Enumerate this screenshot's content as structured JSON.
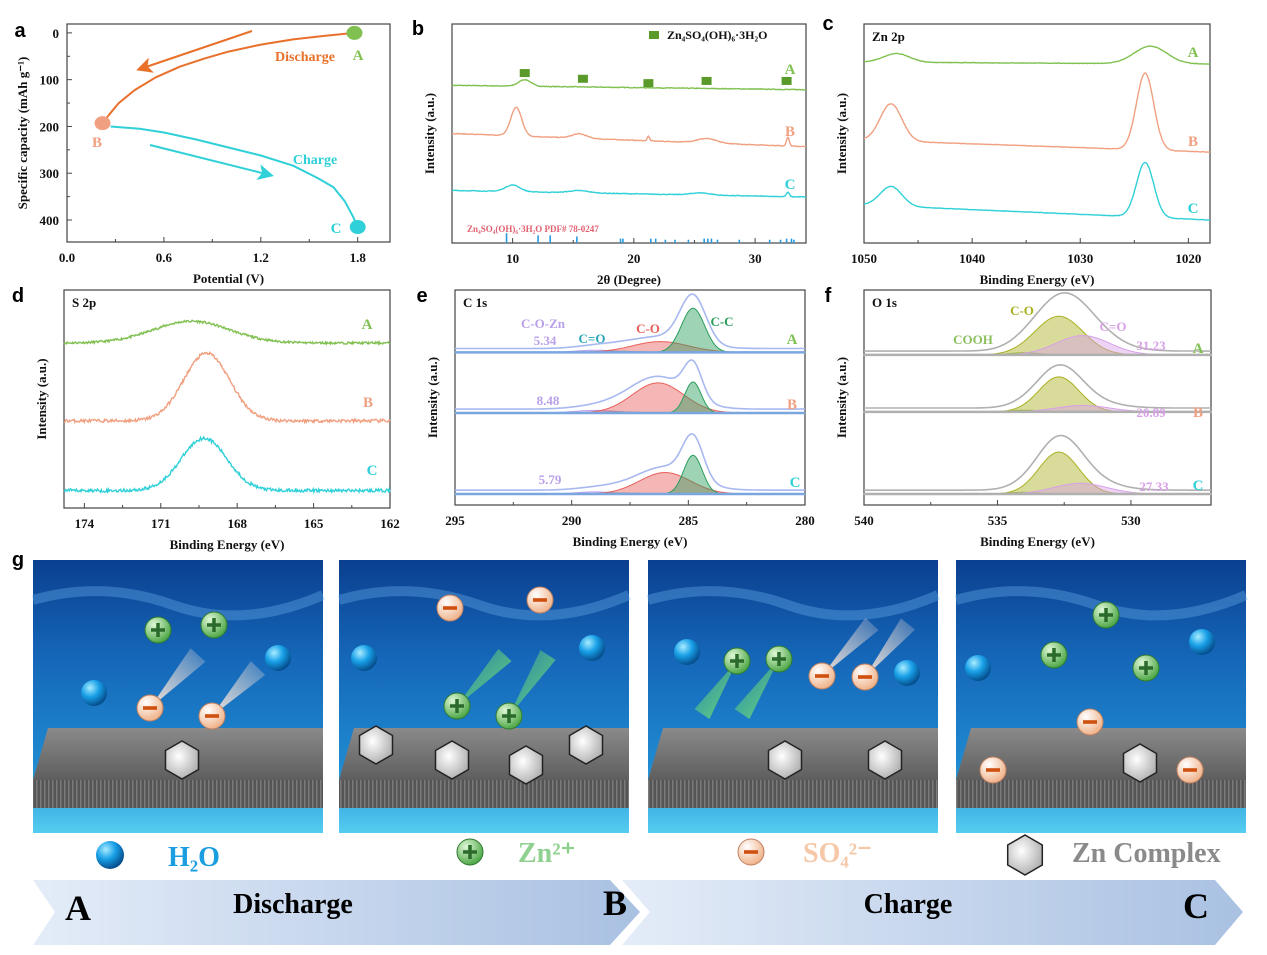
{
  "panel_letters": {
    "a": "a",
    "b": "b",
    "c": "c",
    "d": "d",
    "e": "e",
    "f": "f",
    "g": "g"
  },
  "chart_data": [
    {
      "panel": "a",
      "type": "line",
      "xlabel": "Potential (V)",
      "ylabel": "Specific capacity (mAh g⁻¹)",
      "xlim": [
        0,
        2.0
      ],
      "ylim": [
        -19,
        447
      ],
      "y_inverted": true,
      "xticks": [
        0,
        0.6,
        1.2,
        1.8
      ],
      "xtick_labels": [
        "0.0",
        "0.6",
        "1.2",
        "1.8"
      ],
      "yticks": [
        0,
        100,
        200,
        300,
        400
      ],
      "ytick_labels": [
        "0",
        "100",
        "200",
        "300",
        "400"
      ],
      "series": [
        {
          "name": "Discharge",
          "color": "#e8702a",
          "x": [
            1.78,
            1.6,
            1.4,
            1.2,
            1.0,
            0.85,
            0.7,
            0.55,
            0.42,
            0.32,
            0.26,
            0.22
          ],
          "y": [
            0,
            6,
            14,
            25,
            40,
            55,
            72,
            95,
            122,
            150,
            175,
            193
          ]
        },
        {
          "name": "Charge",
          "color": "#30d0d8",
          "x": [
            0.27,
            0.45,
            0.6,
            0.8,
            1.0,
            1.2,
            1.4,
            1.55,
            1.65,
            1.72,
            1.77,
            1.8
          ],
          "y": [
            200,
            205,
            213,
            228,
            245,
            262,
            284,
            310,
            330,
            360,
            392,
            415
          ]
        }
      ],
      "points": [
        {
          "label": "A",
          "x": 1.78,
          "y": 0,
          "color": "#80c050"
        },
        {
          "label": "B",
          "x": 0.22,
          "y": 193,
          "color": "#f0a080"
        },
        {
          "label": "C",
          "x": 1.8,
          "y": 415,
          "color": "#30d0d8"
        }
      ],
      "annotations": {
        "discharge": "Discharge",
        "charge": "Charge"
      }
    },
    {
      "panel": "b",
      "type": "line",
      "xlabel": "2θ (Degree)",
      "ylabel": "Intensity (a.u.)",
      "xlim": [
        5,
        34.2
      ],
      "ylim": [
        0,
        100
      ],
      "xticks": [
        10,
        20,
        30
      ],
      "xtick_labels": [
        "10",
        "20",
        "30"
      ],
      "legend": {
        "label": "Zn₄SO₄(OH)₆·3H₂O",
        "marker_color": "#5a9a2a",
        "placement": "top-right"
      },
      "series": [
        {
          "name": "A",
          "color": "#80c050",
          "baseline": [
            72,
            70
          ],
          "noise": 0.3,
          "peaks": [
            [
              11,
              3,
              0.5
            ]
          ]
        },
        {
          "name": "B",
          "color": "#f0a080",
          "baseline": [
            50,
            44
          ],
          "noise": 0.3,
          "peaks": [
            [
              10.3,
              13,
              0.45
            ],
            [
              15.5,
              2,
              0.6
            ],
            [
              21.2,
              2,
              0.1
            ],
            [
              26,
              2,
              0.8
            ],
            [
              32.7,
              4,
              0.12
            ]
          ]
        },
        {
          "name": "C",
          "color": "#30d0d8",
          "baseline": [
            24,
            21
          ],
          "noise": 0.3,
          "peaks": [
            [
              10,
              3,
              0.6
            ],
            [
              15.5,
              1,
              0.8
            ],
            [
              25.5,
              1,
              0.8
            ],
            [
              32.7,
              2,
              0.12
            ]
          ]
        }
      ],
      "markers": {
        "x": [
          11,
          15.8,
          21.2,
          26,
          32.6
        ],
        "y": [
          77.6,
          75,
          73,
          74,
          74
        ]
      },
      "reference": {
        "label": "Zn₄SO₄(OH)₆·3H₂O PDF# 78-0247",
        "color": "#2a9ae0",
        "x": [
          9.5,
          12.1,
          13.1,
          15.3,
          18.9,
          19.1,
          21.4,
          21.8,
          22.6,
          23.4,
          24.5,
          25.8,
          26.1,
          26.4,
          26.9,
          28.7,
          31.2,
          32.1,
          32.6,
          33,
          33.2
        ],
        "h": [
          4.5,
          3.5,
          3.5,
          3,
          2,
          2,
          2,
          2,
          1.5,
          1.5,
          1.5,
          2,
          2,
          2,
          1.5,
          1.5,
          1.5,
          1.5,
          2,
          2,
          1.5
        ]
      }
    },
    {
      "panel": "c",
      "type": "line",
      "title": "Zn 2p",
      "xlabel": "Binding Energy (eV)",
      "ylabel": "Intensity (a.u.)",
      "xlim": [
        1050,
        1018
      ],
      "ylim": [
        0,
        100
      ],
      "xticks": [
        1050,
        1040,
        1030,
        1020
      ],
      "xtick_labels": [
        "1050",
        "1040",
        "1030",
        "1020"
      ],
      "series": [
        {
          "name": "A",
          "color": "#80c050",
          "baseline": [
            82.6,
            81.7
          ],
          "noise": 0.2,
          "peaks": [
            [
              1047,
              4,
              1.2
            ],
            [
              1023.5,
              8,
              1.5
            ]
          ]
        },
        {
          "name": "B",
          "color": "#f0a080",
          "baseline": [
            47,
            41.5
          ],
          "noise": 0.2,
          "peaks": [
            [
              1047.5,
              17,
              1.0
            ],
            [
              1024,
              35,
              0.8
            ]
          ]
        },
        {
          "name": "C",
          "color": "#30d0d8",
          "baseline": [
            17.4,
            10.5
          ],
          "noise": 0.2,
          "peaks": [
            [
              1047.5,
              9,
              1.0
            ],
            [
              1024,
              25,
              0.8
            ]
          ]
        }
      ]
    },
    {
      "panel": "d",
      "type": "line",
      "title": "S 2p",
      "xlabel": "Binding Energy (eV)",
      "ylabel": "Intensity (a.u.)",
      "xlim": [
        174.8,
        162
      ],
      "ylim": [
        0,
        100
      ],
      "xticks": [
        174,
        171,
        168,
        165,
        162
      ],
      "xtick_labels": [
        "174",
        "171",
        "168",
        "165",
        "162"
      ],
      "series": [
        {
          "name": "A",
          "color": "#80c050",
          "baseline": [
            75.7,
            75.7
          ],
          "noise": 1.0,
          "peaks": [
            [
              169.8,
              10,
              1.5
            ]
          ]
        },
        {
          "name": "B",
          "color": "#f0a080",
          "baseline": [
            40,
            40
          ],
          "noise": 1.5,
          "peaks": [
            [
              169.2,
              31,
              0.9
            ]
          ]
        },
        {
          "name": "C",
          "color": "#30d0d8",
          "baseline": [
            8,
            8
          ],
          "noise": 1.5,
          "peaks": [
            [
              169.3,
              24,
              0.9
            ]
          ]
        }
      ]
    },
    {
      "panel": "e",
      "type": "area",
      "title": "C 1s",
      "xlabel": "Binding Energy (eV)",
      "ylabel": "Intensity (a.u.)",
      "xlim": [
        295,
        280
      ],
      "ylim": [
        0,
        100
      ],
      "xticks": [
        295,
        290,
        285,
        280
      ],
      "xtick_labels": [
        "295",
        "290",
        "285",
        "280"
      ],
      "component_labels": [
        {
          "name": "C-O-Zn",
          "color": "#b9a0e8"
        },
        {
          "name": "C=O",
          "color": "#2aa6b8"
        },
        {
          "name": "C-O",
          "color": "#e8605a"
        },
        {
          "name": "C-C",
          "color": "#2a9d5c"
        }
      ],
      "envelope_color": "#a8b8f0",
      "baseline_color": "#7aa6e0",
      "series": [
        {
          "name": "A",
          "color": "#80c050",
          "baseline": 71,
          "value": "5.34",
          "components": [
            [
              289,
              1.0,
              0.8
            ],
            [
              288,
              0.5,
              0.8
            ],
            [
              286.2,
              5,
              1.2
            ],
            [
              284.8,
              20.5,
              0.5
            ]
          ]
        },
        {
          "name": "B",
          "color": "#f0a080",
          "baseline": 42.8,
          "value": "8.48",
          "components": [
            [
              289,
              1.2,
              0.9
            ],
            [
              288,
              0.5,
              0.8
            ],
            [
              286.3,
              14,
              1.1
            ],
            [
              284.8,
              14.4,
              0.35
            ]
          ]
        },
        {
          "name": "C",
          "color": "#30d0d8",
          "baseline": 5.1,
          "value": "5.79",
          "components": [
            [
              289,
              1.0,
              0.8
            ],
            [
              288,
              0.5,
              0.8
            ],
            [
              286,
              10,
              1.1
            ],
            [
              284.8,
              18,
              0.4
            ]
          ]
        }
      ]
    },
    {
      "panel": "f",
      "type": "area",
      "title": "O 1s",
      "xlabel": "Binding Energy (eV)",
      "ylabel": "Intensity (a.u.)",
      "xlim": [
        540,
        527
      ],
      "ylim": [
        0,
        100
      ],
      "xticks": [
        540,
        535,
        530
      ],
      "xtick_labels": [
        "540",
        "535",
        "530"
      ],
      "component_labels": [
        {
          "name": "COOH",
          "color": "#8cc060"
        },
        {
          "name": "C-O",
          "color": "#a8b020"
        },
        {
          "name": "C=O",
          "color": "#d8a0e8"
        }
      ],
      "envelope_color": "#b0b0b0",
      "baseline_color": "#b0b0b0",
      "series": [
        {
          "name": "A",
          "color": "#80c050",
          "baseline": 69.8,
          "value": "31.23",
          "components": [
            [
              534,
              1,
              0.6
            ],
            [
              532.7,
              18,
              0.9
            ],
            [
              531.8,
              9,
              1.0
            ]
          ]
        },
        {
          "name": "B",
          "color": "#f0a080",
          "baseline": 43.3,
          "value": "20.89",
          "components": [
            [
              534,
              0.8,
              0.6
            ],
            [
              532.7,
              16.3,
              0.75
            ],
            [
              531.8,
              3,
              1.0
            ]
          ]
        },
        {
          "name": "C",
          "color": "#30d0d8",
          "baseline": 5.1,
          "value": "27.33",
          "components": [
            [
              534,
              0.8,
              0.6
            ],
            [
              532.7,
              19.5,
              0.75
            ],
            [
              531.9,
              5,
              1.0
            ]
          ]
        }
      ]
    }
  ],
  "schematic": {
    "legend": [
      {
        "label": "H₂O",
        "color": "#1a9ee0",
        "icon": "water-molecule-icon"
      },
      {
        "label": "Zn²⁺",
        "color": "#90d090",
        "icon": "zinc-ion-icon"
      },
      {
        "label": "SO₄²⁻",
        "color": "#f5c8a8",
        "icon": "sulfate-ion-icon"
      },
      {
        "label": "Zn Complex",
        "color": "#8a8a8a",
        "icon": "zn-complex-icon"
      }
    ],
    "process": {
      "start": "A",
      "discharge": "Discharge",
      "middle": "B",
      "charge": "Charge",
      "end": "C"
    }
  }
}
